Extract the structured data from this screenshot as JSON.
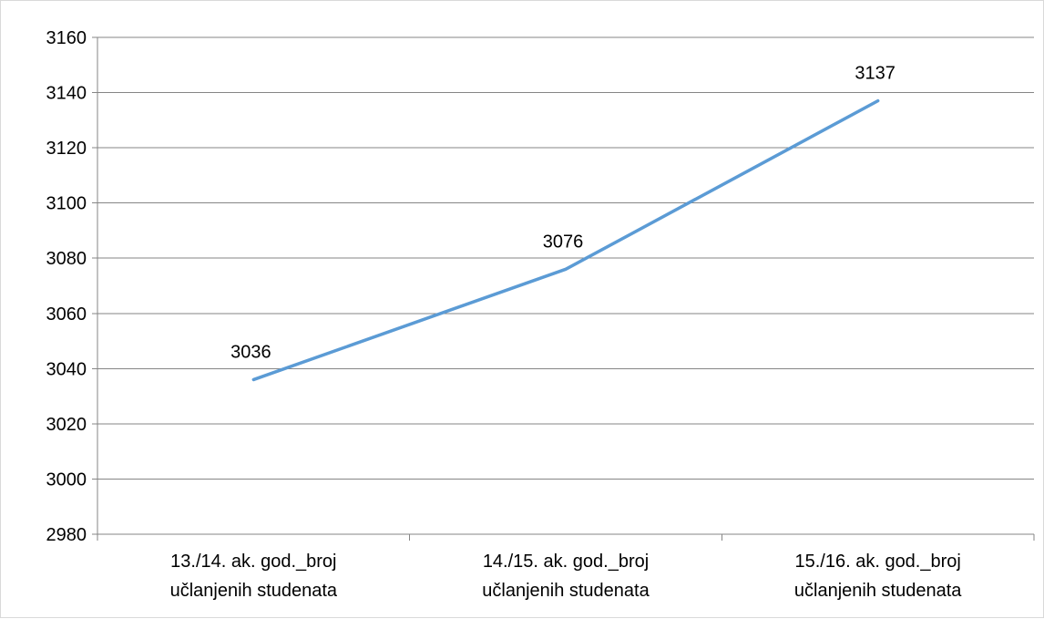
{
  "chart_data": {
    "type": "line",
    "title": "",
    "xlabel": "",
    "ylabel": "",
    "categories": [
      [
        "13./14. ak. god._broj",
        "učlanjenih studenata"
      ],
      [
        "14./15. ak.  god._broj",
        "učlanjenih studenata"
      ],
      [
        "15./16. ak.  god._broj",
        "učlanjenih studenata"
      ]
    ],
    "series": [
      {
        "values": [
          3036,
          3076,
          3137
        ],
        "color": "#5B9BD5"
      }
    ],
    "data_labels": [
      "3036",
      "3076",
      "3137"
    ],
    "ylim": [
      2980,
      3160
    ],
    "y_ticks": [
      2980,
      3000,
      3020,
      3040,
      3060,
      3080,
      3100,
      3120,
      3140,
      3160
    ],
    "grid": true,
    "legend": "none"
  }
}
